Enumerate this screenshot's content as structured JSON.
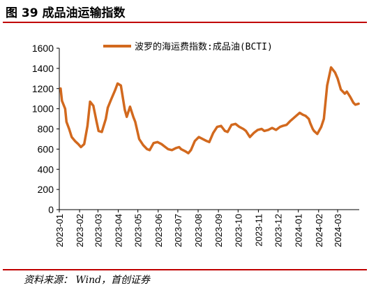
{
  "header": {
    "figure_title": "图 39  成品油运输指数",
    "rule_color": "#c00000"
  },
  "footer": {
    "source": "资料来源：  Wind，首创证券"
  },
  "chart_data": {
    "type": "line",
    "title": "",
    "xlabel": "",
    "ylabel": "",
    "ylim": [
      0,
      1600
    ],
    "yticks": [
      0,
      200,
      400,
      600,
      800,
      1000,
      1200,
      1400,
      1600
    ],
    "xticks": [
      "2023-01",
      "2023-02",
      "2023-03",
      "2023-04",
      "2023-05",
      "2023-06",
      "2023-07",
      "2023-08",
      "2023-09",
      "2023-10",
      "2023-11",
      "2023-12",
      "2024-01",
      "2024-02",
      "2024-03"
    ],
    "legend_position": "top-right",
    "grid": false,
    "series": [
      {
        "name": "波罗的海运费指数:成品油(BCTI)",
        "color": "#d2691e",
        "x": [
          "2023-01-03",
          "2023-01-05",
          "2023-01-10",
          "2023-01-12",
          "2023-01-16",
          "2023-01-20",
          "2023-01-25",
          "2023-01-30",
          "2023-02-03",
          "2023-02-08",
          "2023-02-13",
          "2023-02-17",
          "2023-02-22",
          "2023-02-27",
          "2023-03-02",
          "2023-03-07",
          "2023-03-13",
          "2023-03-16",
          "2023-03-21",
          "2023-03-27",
          "2023-03-31",
          "2023-04-05",
          "2023-04-11",
          "2023-04-14",
          "2023-04-19",
          "2023-04-24",
          "2023-04-27",
          "2023-05-03",
          "2023-05-09",
          "2023-05-15",
          "2023-05-19",
          "2023-05-25",
          "2023-05-31",
          "2023-06-06",
          "2023-06-12",
          "2023-06-16",
          "2023-06-22",
          "2023-06-28",
          "2023-07-03",
          "2023-07-06",
          "2023-07-12",
          "2023-07-17",
          "2023-07-21",
          "2023-07-27",
          "2023-08-02",
          "2023-08-08",
          "2023-08-14",
          "2023-08-18",
          "2023-08-24",
          "2023-08-30",
          "2023-09-05",
          "2023-09-11",
          "2023-09-15",
          "2023-09-21",
          "2023-09-27",
          "2023-10-03",
          "2023-10-09",
          "2023-10-13",
          "2023-10-19",
          "2023-10-25",
          "2023-10-31",
          "2023-11-06",
          "2023-11-10",
          "2023-11-16",
          "2023-11-22",
          "2023-11-28",
          "2023-12-04",
          "2023-12-08",
          "2023-12-14",
          "2023-12-20",
          "2023-12-27",
          "2024-01-03",
          "2024-01-08",
          "2024-01-12",
          "2024-01-17",
          "2024-01-19",
          "2024-01-23",
          "2024-01-25",
          "2024-01-30",
          "2024-02-05",
          "2024-02-09",
          "2024-02-14",
          "2024-02-20",
          "2024-02-26",
          "2024-03-01",
          "2024-03-06",
          "2024-03-12",
          "2024-03-15",
          "2024-03-20",
          "2024-03-25",
          "2024-03-28",
          "2024-04-02"
        ],
        "values": [
          1200,
          1080,
          1000,
          870,
          800,
          720,
          680,
          650,
          620,
          650,
          830,
          1070,
          1030,
          870,
          780,
          770,
          900,
          1010,
          1090,
          1180,
          1250,
          1230,
          990,
          920,
          1020,
          920,
          870,
          700,
          640,
          600,
          590,
          660,
          670,
          650,
          620,
          600,
          590,
          610,
          620,
          600,
          580,
          560,
          590,
          680,
          720,
          700,
          680,
          670,
          760,
          820,
          830,
          780,
          770,
          840,
          850,
          820,
          800,
          780,
          720,
          760,
          790,
          800,
          780,
          790,
          810,
          790,
          820,
          830,
          840,
          880,
          920,
          960,
          940,
          930,
          900,
          860,
          800,
          780,
          750,
          820,
          900,
          1230,
          1410,
          1360,
          1300,
          1190,
          1150,
          1170,
          1120,
          1060,
          1040,
          1050
        ]
      }
    ]
  }
}
